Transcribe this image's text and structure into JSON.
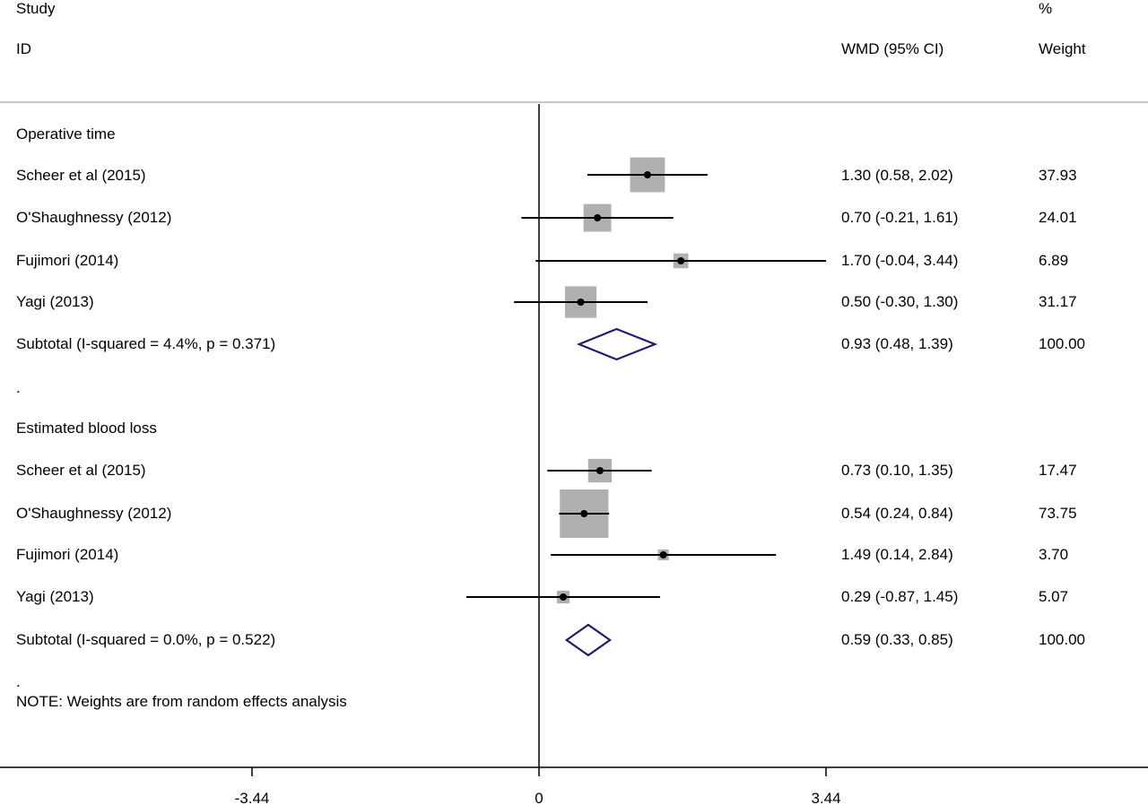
{
  "header": {
    "study_line1": "Study",
    "study_line2": "ID",
    "est_label": "WMD (95% CI)",
    "weight_line1": "%",
    "weight_line2": "Weight"
  },
  "groups": [
    {
      "label": "Operative time",
      "rows": [
        {
          "study": "Scheer et al (2015)",
          "ci_text": "1.30 (0.58, 2.02)",
          "weight_text": "37.93"
        },
        {
          "study": "O'Shaughnessy (2012)",
          "ci_text": "0.70 (-0.21, 1.61)",
          "weight_text": "24.01"
        },
        {
          "study": "Fujimori (2014)",
          "ci_text": "1.70 (-0.04, 3.44)",
          "weight_text": "6.89"
        },
        {
          "study": "Yagi (2013)",
          "ci_text": "0.50 (-0.30, 1.30)",
          "weight_text": "31.17"
        }
      ],
      "subtotal": {
        "label": "Subtotal  (I-squared = 4.4%, p = 0.371)",
        "ci_text": "0.93 (0.48, 1.39)",
        "weight_text": "100.00"
      }
    },
    {
      "label": "Estimated blood loss",
      "rows": [
        {
          "study": "Scheer et al (2015)",
          "ci_text": "0.73 (0.10, 1.35)",
          "weight_text": "17.47"
        },
        {
          "study": "O'Shaughnessy (2012)",
          "ci_text": "0.54 (0.24, 0.84)",
          "weight_text": "73.75"
        },
        {
          "study": "Fujimori (2014)",
          "ci_text": "1.49 (0.14, 2.84)",
          "weight_text": "3.70"
        },
        {
          "study": "Yagi (2013)",
          "ci_text": "0.29 (-0.87, 1.45)",
          "weight_text": "5.07"
        }
      ],
      "subtotal": {
        "label": "Subtotal  (I-squared = 0.0%, p = 0.522)",
        "ci_text": "0.59 (0.33, 0.85)",
        "weight_text": "100.00"
      }
    }
  ],
  "separator": ".",
  "separator2": ".",
  "note": "NOTE: Weights are from random effects analysis",
  "chart_data": {
    "type": "forest",
    "xlim": [
      -6.5,
      7.3
    ],
    "xticks": [
      -3.44,
      0,
      3.44
    ],
    "xtick_labels": [
      "-3.44",
      "0",
      "3.44"
    ],
    "null_line": 0,
    "colors": {
      "box": "#b0b0b0",
      "line": "#000000",
      "diamond": "#1a1f6e"
    },
    "groups": [
      {
        "name": "Operative time",
        "studies": [
          {
            "name": "Scheer et al (2015)",
            "est": 1.3,
            "lo": 0.58,
            "hi": 2.02,
            "weight": 37.93
          },
          {
            "name": "O'Shaughnessy (2012)",
            "est": 0.7,
            "lo": -0.21,
            "hi": 1.61,
            "weight": 24.01
          },
          {
            "name": "Fujimori (2014)",
            "est": 1.7,
            "lo": -0.04,
            "hi": 3.44,
            "weight": 6.89
          },
          {
            "name": "Yagi (2013)",
            "est": 0.5,
            "lo": -0.3,
            "hi": 1.3,
            "weight": 31.17
          }
        ],
        "subtotal": {
          "est": 0.93,
          "lo": 0.48,
          "hi": 1.39
        }
      },
      {
        "name": "Estimated blood loss",
        "studies": [
          {
            "name": "Scheer et al (2015)",
            "est": 0.73,
            "lo": 0.1,
            "hi": 1.35,
            "weight": 17.47
          },
          {
            "name": "O'Shaughnessy (2012)",
            "est": 0.54,
            "lo": 0.24,
            "hi": 0.84,
            "weight": 73.75
          },
          {
            "name": "Fujimori (2014)",
            "est": 1.49,
            "lo": 0.14,
            "hi": 2.84,
            "weight": 3.7
          },
          {
            "name": "Yagi (2013)",
            "est": 0.29,
            "lo": -0.87,
            "hi": 1.45,
            "weight": 5.07
          }
        ],
        "subtotal": {
          "est": 0.59,
          "lo": 0.33,
          "hi": 0.85
        }
      }
    ]
  }
}
